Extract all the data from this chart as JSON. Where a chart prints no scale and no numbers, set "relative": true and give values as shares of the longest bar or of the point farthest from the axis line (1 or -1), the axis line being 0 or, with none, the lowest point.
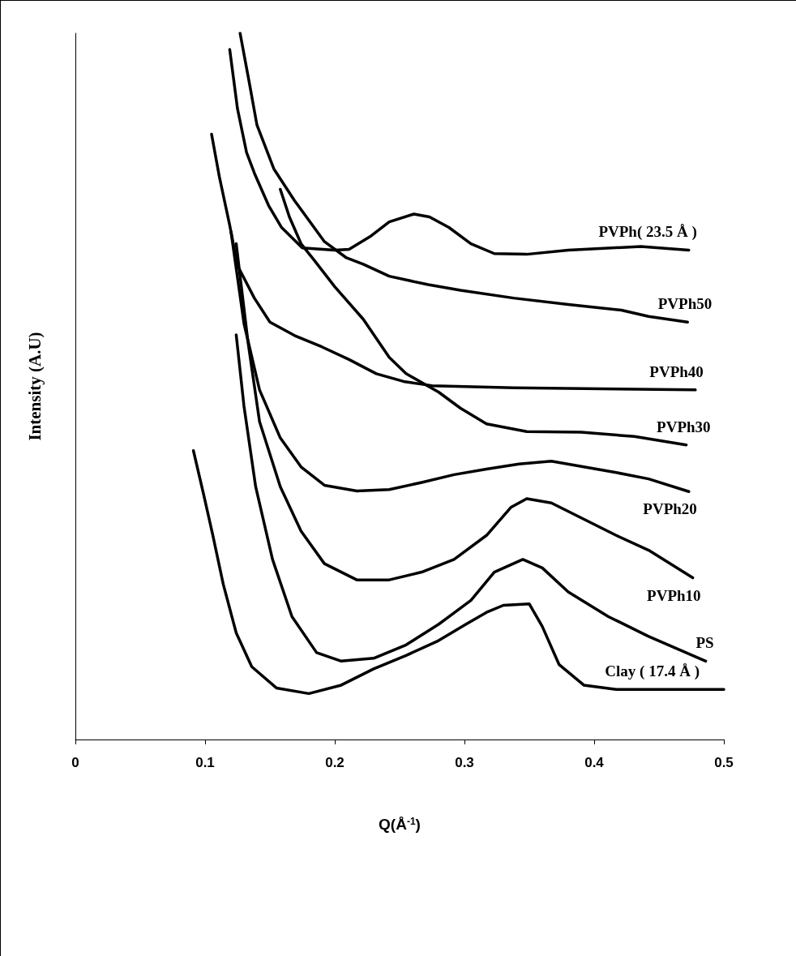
{
  "chart_data": {
    "type": "line",
    "relative": true,
    "xlabel": "Q(Å$^{-1}$)",
    "ylabel": "Intensity (A.U)",
    "xlim": [
      0,
      0.5
    ],
    "xticks": [
      0,
      0.1,
      0.2,
      0.3,
      0.4,
      0.5
    ],
    "grid": false,
    "legend": false,
    "marker": "none",
    "line_style": "solid",
    "series": [
      {
        "name": "PVPh( 23.5 Å )",
        "color": "#000000",
        "x": [
          0.119,
          0.125,
          0.132,
          0.138,
          0.149,
          0.159,
          0.175,
          0.2,
          0.211,
          0.228,
          0.242,
          0.261,
          0.273,
          0.288,
          0.305,
          0.323,
          0.348,
          0.38,
          0.436,
          0.473
        ],
        "values": [
          0.977,
          0.893,
          0.831,
          0.802,
          0.756,
          0.725,
          0.696,
          0.693,
          0.694,
          0.713,
          0.733,
          0.744,
          0.74,
          0.725,
          0.702,
          0.688,
          0.687,
          0.693,
          0.698,
          0.693
        ]
      },
      {
        "name": "PVPh50",
        "color": "#000000",
        "x": [
          0.127,
          0.134,
          0.14,
          0.153,
          0.169,
          0.192,
          0.209,
          0.222,
          0.242,
          0.272,
          0.297,
          0.338,
          0.38,
          0.421,
          0.442,
          0.472
        ],
        "values": [
          1.0,
          0.931,
          0.87,
          0.808,
          0.763,
          0.705,
          0.682,
          0.673,
          0.656,
          0.644,
          0.636,
          0.625,
          0.616,
          0.608,
          0.599,
          0.591
        ]
      },
      {
        "name": "PVPh40",
        "color": "#000000",
        "x": [
          0.105,
          0.111,
          0.119,
          0.125,
          0.138,
          0.15,
          0.169,
          0.19,
          0.211,
          0.232,
          0.253,
          0.275,
          0.338,
          0.478
        ],
        "values": [
          0.857,
          0.797,
          0.728,
          0.671,
          0.625,
          0.591,
          0.572,
          0.556,
          0.538,
          0.518,
          0.507,
          0.501,
          0.498,
          0.495
        ]
      },
      {
        "name": "PVPh30",
        "color": "#000000",
        "x": [
          0.158,
          0.165,
          0.174,
          0.184,
          0.2,
          0.222,
          0.242,
          0.255,
          0.28,
          0.297,
          0.317,
          0.348,
          0.39,
          0.431,
          0.471
        ],
        "values": [
          0.779,
          0.74,
          0.702,
          0.679,
          0.641,
          0.595,
          0.541,
          0.518,
          0.492,
          0.469,
          0.447,
          0.436,
          0.435,
          0.429,
          0.417
        ]
      },
      {
        "name": "PVPh20",
        "color": "#000000",
        "x": [
          0.12,
          0.13,
          0.142,
          0.158,
          0.174,
          0.192,
          0.217,
          0.242,
          0.267,
          0.292,
          0.317,
          0.342,
          0.367,
          0.392,
          0.417,
          0.442,
          0.473
        ],
        "values": [
          0.719,
          0.589,
          0.495,
          0.427,
          0.386,
          0.36,
          0.352,
          0.354,
          0.364,
          0.375,
          0.383,
          0.39,
          0.394,
          0.386,
          0.378,
          0.369,
          0.351
        ]
      },
      {
        "name": "PVPh10",
        "color": "#000000",
        "x": [
          0.124,
          0.133,
          0.142,
          0.158,
          0.174,
          0.192,
          0.217,
          0.242,
          0.267,
          0.292,
          0.317,
          0.336,
          0.348,
          0.367,
          0.392,
          0.417,
          0.442,
          0.476
        ],
        "values": [
          0.702,
          0.564,
          0.45,
          0.358,
          0.295,
          0.249,
          0.226,
          0.226,
          0.237,
          0.255,
          0.289,
          0.329,
          0.341,
          0.335,
          0.312,
          0.289,
          0.268,
          0.229
        ]
      },
      {
        "name": "PS",
        "color": "#000000",
        "x": [
          0.124,
          0.13,
          0.139,
          0.152,
          0.167,
          0.186,
          0.205,
          0.23,
          0.255,
          0.28,
          0.305,
          0.323,
          0.345,
          0.36,
          0.38,
          0.411,
          0.442,
          0.486
        ],
        "values": [
          0.573,
          0.472,
          0.358,
          0.255,
          0.174,
          0.123,
          0.111,
          0.115,
          0.134,
          0.163,
          0.197,
          0.237,
          0.255,
          0.243,
          0.209,
          0.174,
          0.146,
          0.111
        ]
      },
      {
        "name": "Clay ( 17.4 Å )",
        "color": "#000000",
        "x": [
          0.091,
          0.099,
          0.106,
          0.114,
          0.124,
          0.136,
          0.155,
          0.18,
          0.205,
          0.23,
          0.255,
          0.28,
          0.301,
          0.317,
          0.33,
          0.35,
          0.36,
          0.373,
          0.392,
          0.417,
          0.5
        ],
        "values": [
          0.409,
          0.346,
          0.289,
          0.22,
          0.151,
          0.103,
          0.073,
          0.065,
          0.077,
          0.1,
          0.119,
          0.14,
          0.163,
          0.18,
          0.19,
          0.192,
          0.16,
          0.106,
          0.077,
          0.071,
          0.071
        ]
      }
    ]
  }
}
